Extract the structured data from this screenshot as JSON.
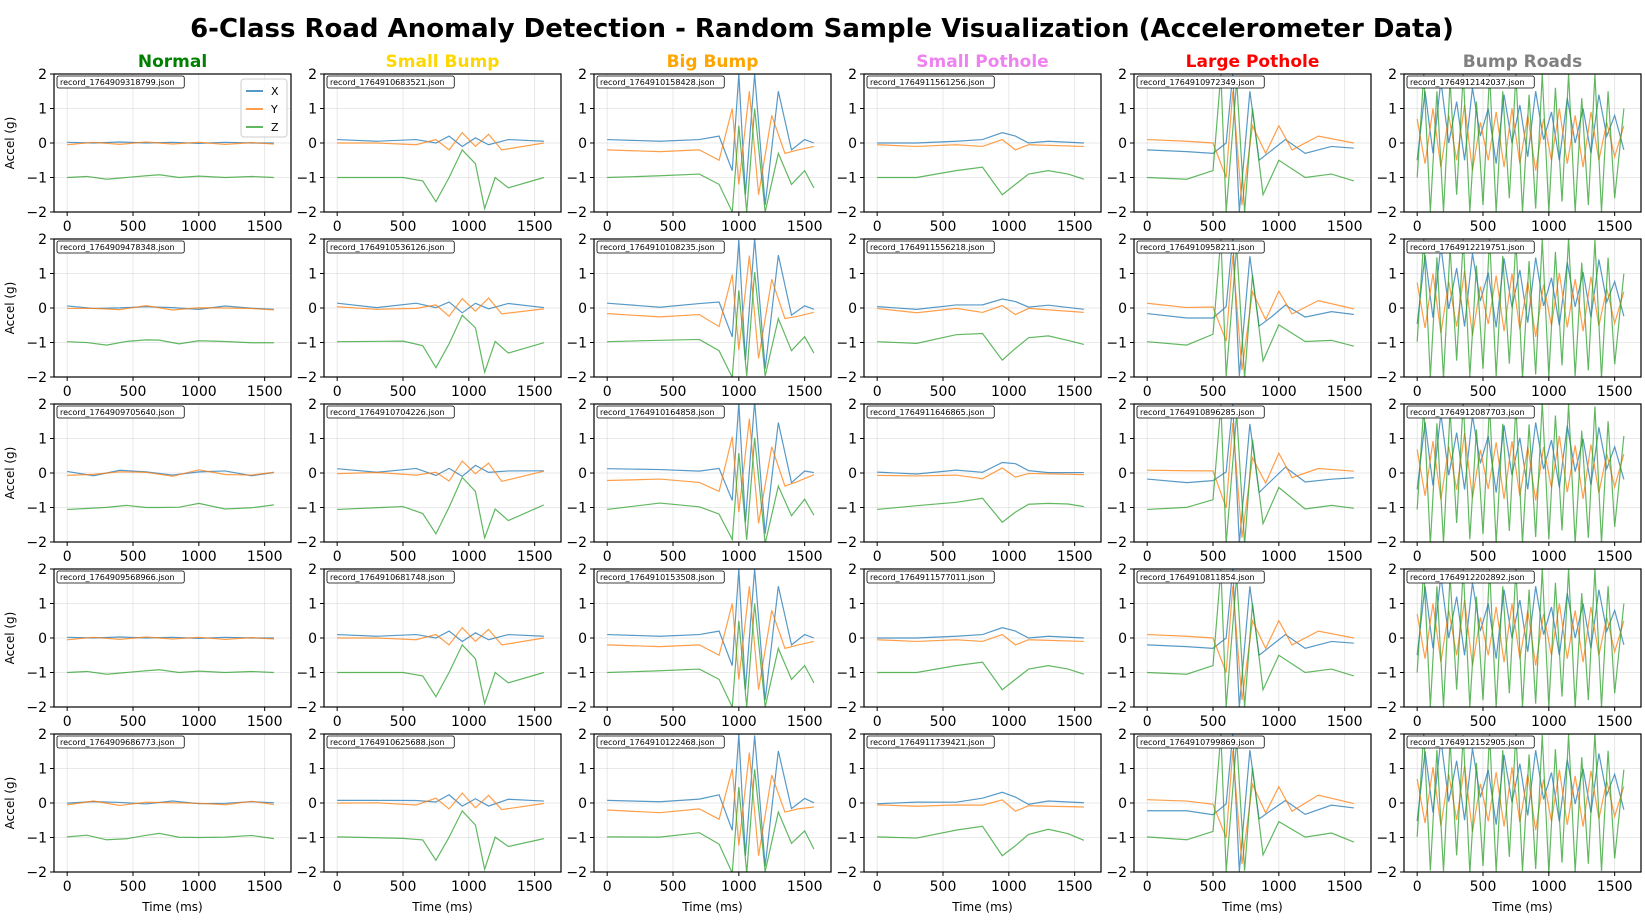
{
  "title": "6-Class Road Anomaly Detection - Random Sample Visualization (Accelerometer Data)",
  "chart_data": {
    "type": "line",
    "xlim": [
      -100,
      1700
    ],
    "ylim": [
      -2,
      2
    ],
    "xticks": [
      0,
      500,
      1000,
      1500
    ],
    "yticks": [
      2,
      1,
      0,
      -1,
      -2
    ],
    "xlabel": "Time (ms)",
    "ylabel": "Accel (g)",
    "legend": [
      "X",
      "Y",
      "Z"
    ],
    "series_colors": [
      "#1f77b4",
      "#ff7f0e",
      "#2ca02c"
    ],
    "columns": [
      {
        "title": "Normal",
        "color": "#008000",
        "anomaly": "normal",
        "files": [
          "record_1764909318799.json",
          "record_1764909478348.json",
          "record_1764909705640.json",
          "record_1764909568966.json",
          "record_1764909686773.json"
        ]
      },
      {
        "title": "Small Bump",
        "color": "#FFD700",
        "anomaly": "small_bump",
        "files": [
          "record_1764910683521.json",
          "record_1764910536126.json",
          "record_1764910704226.json",
          "record_1764910681748.json",
          "record_1764910625688.json"
        ]
      },
      {
        "title": "Big Bump",
        "color": "#FFA500",
        "anomaly": "big_bump",
        "files": [
          "record_1764910158428.json",
          "record_1764910108235.json",
          "record_1764910164858.json",
          "record_1764910153508.json",
          "record_1764910122468.json"
        ]
      },
      {
        "title": "Small Pothole",
        "color": "#EE82EE",
        "anomaly": "small_pothole",
        "files": [
          "record_1764911561256.json",
          "record_1764911556218.json",
          "record_1764911646865.json",
          "record_1764911577011.json",
          "record_1764911739421.json"
        ]
      },
      {
        "title": "Large Pothole",
        "color": "#FF0000",
        "anomaly": "large_pothole",
        "files": [
          "record_1764910972349.json",
          "record_1764910958211.json",
          "record_1764910896285.json",
          "record_1764910811854.json",
          "record_1764910799869.json"
        ]
      },
      {
        "title": "Bump Roads",
        "color": "#808080",
        "anomaly": "bump_roads",
        "files": [
          "record_1764912142037.json",
          "record_1764912219751.json",
          "record_1764912087703.json",
          "record_1764912202892.json",
          "record_1764912152905.json"
        ]
      }
    ],
    "samples": {
      "normal": {
        "x": [
          [
            0,
            0.02
          ],
          [
            200,
            0.0
          ],
          [
            400,
            0.03
          ],
          [
            600,
            0.0
          ],
          [
            800,
            0.02
          ],
          [
            1000,
            -0.01
          ],
          [
            1200,
            0.02
          ],
          [
            1400,
            0.0
          ],
          [
            1570,
            0.0
          ]
        ],
        "y": [
          [
            0,
            -0.05
          ],
          [
            200,
            0.02
          ],
          [
            400,
            -0.04
          ],
          [
            600,
            0.03
          ],
          [
            800,
            -0.03
          ],
          [
            1000,
            0.02
          ],
          [
            1200,
            -0.04
          ],
          [
            1400,
            0.01
          ],
          [
            1570,
            -0.03
          ]
        ],
        "z": [
          [
            0,
            -1.0
          ],
          [
            150,
            -0.97
          ],
          [
            300,
            -1.05
          ],
          [
            450,
            -1.0
          ],
          [
            600,
            -0.95
          ],
          [
            700,
            -0.92
          ],
          [
            850,
            -1.0
          ],
          [
            1000,
            -0.96
          ],
          [
            1200,
            -1.0
          ],
          [
            1400,
            -0.97
          ],
          [
            1570,
            -1.0
          ]
        ]
      },
      "small_bump": {
        "x": [
          [
            0,
            0.1
          ],
          [
            300,
            0.05
          ],
          [
            600,
            0.1
          ],
          [
            750,
            0.0
          ],
          [
            850,
            0.2
          ],
          [
            950,
            -0.1
          ],
          [
            1050,
            0.15
          ],
          [
            1150,
            -0.05
          ],
          [
            1300,
            0.1
          ],
          [
            1570,
            0.05
          ]
        ],
        "y": [
          [
            0,
            0.0
          ],
          [
            300,
            0.0
          ],
          [
            600,
            -0.05
          ],
          [
            750,
            0.1
          ],
          [
            850,
            -0.2
          ],
          [
            950,
            0.3
          ],
          [
            1050,
            -0.1
          ],
          [
            1150,
            0.25
          ],
          [
            1250,
            -0.2
          ],
          [
            1570,
            0.0
          ]
        ],
        "z": [
          [
            0,
            -1.0
          ],
          [
            500,
            -1.0
          ],
          [
            650,
            -1.1
          ],
          [
            750,
            -1.7
          ],
          [
            850,
            -1.0
          ],
          [
            950,
            -0.2
          ],
          [
            1050,
            -0.6
          ],
          [
            1120,
            -1.9
          ],
          [
            1200,
            -1.0
          ],
          [
            1300,
            -1.3
          ],
          [
            1570,
            -1.0
          ]
        ]
      },
      "big_bump": {
        "x": [
          [
            0,
            0.1
          ],
          [
            400,
            0.05
          ],
          [
            700,
            0.1
          ],
          [
            850,
            0.2
          ],
          [
            950,
            -0.8
          ],
          [
            1000,
            2.0
          ],
          [
            1050,
            -1.5
          ],
          [
            1120,
            2.0
          ],
          [
            1200,
            -1.8
          ],
          [
            1300,
            1.5
          ],
          [
            1400,
            -0.2
          ],
          [
            1500,
            0.1
          ],
          [
            1570,
            0.0
          ]
        ],
        "y": [
          [
            0,
            -0.2
          ],
          [
            400,
            -0.25
          ],
          [
            700,
            -0.2
          ],
          [
            850,
            -0.5
          ],
          [
            950,
            1.0
          ],
          [
            1000,
            -1.2
          ],
          [
            1080,
            1.5
          ],
          [
            1150,
            -1.5
          ],
          [
            1250,
            0.8
          ],
          [
            1350,
            -0.3
          ],
          [
            1450,
            -0.2
          ],
          [
            1570,
            -0.1
          ]
        ],
        "z": [
          [
            0,
            -1.0
          ],
          [
            400,
            -0.95
          ],
          [
            700,
            -0.9
          ],
          [
            850,
            -1.2
          ],
          [
            950,
            -2.0
          ],
          [
            1000,
            0.5
          ],
          [
            1060,
            -2.0
          ],
          [
            1120,
            1.0
          ],
          [
            1200,
            -2.0
          ],
          [
            1300,
            -0.3
          ],
          [
            1400,
            -1.2
          ],
          [
            1500,
            -0.8
          ],
          [
            1570,
            -1.3
          ]
        ]
      },
      "small_pothole": {
        "x": [
          [
            0,
            0.0
          ],
          [
            300,
            0.0
          ],
          [
            600,
            0.05
          ],
          [
            800,
            0.1
          ],
          [
            950,
            0.3
          ],
          [
            1050,
            0.2
          ],
          [
            1150,
            0.0
          ],
          [
            1300,
            0.05
          ],
          [
            1570,
            0.0
          ]
        ],
        "y": [
          [
            0,
            -0.05
          ],
          [
            300,
            -0.1
          ],
          [
            600,
            -0.05
          ],
          [
            800,
            -0.1
          ],
          [
            950,
            0.1
          ],
          [
            1050,
            -0.2
          ],
          [
            1150,
            -0.05
          ],
          [
            1570,
            -0.1
          ]
        ],
        "z": [
          [
            0,
            -1.0
          ],
          [
            300,
            -1.0
          ],
          [
            600,
            -0.8
          ],
          [
            800,
            -0.7
          ],
          [
            950,
            -1.5
          ],
          [
            1050,
            -1.2
          ],
          [
            1150,
            -0.9
          ],
          [
            1300,
            -0.8
          ],
          [
            1450,
            -0.9
          ],
          [
            1570,
            -1.05
          ]
        ]
      },
      "large_pothole": {
        "x": [
          [
            0,
            -0.2
          ],
          [
            300,
            -0.25
          ],
          [
            500,
            -0.3
          ],
          [
            600,
            0.0
          ],
          [
            650,
            2.0
          ],
          [
            700,
            -2.0
          ],
          [
            780,
            1.5
          ],
          [
            850,
            -0.5
          ],
          [
            950,
            -0.2
          ],
          [
            1050,
            0.1
          ],
          [
            1200,
            -0.3
          ],
          [
            1400,
            -0.1
          ],
          [
            1570,
            -0.15
          ]
        ],
        "y": [
          [
            0,
            0.1
          ],
          [
            300,
            0.05
          ],
          [
            500,
            0.0
          ],
          [
            600,
            -1.0
          ],
          [
            650,
            1.5
          ],
          [
            720,
            -1.8
          ],
          [
            800,
            0.5
          ],
          [
            900,
            -0.3
          ],
          [
            1000,
            0.5
          ],
          [
            1100,
            -0.2
          ],
          [
            1300,
            0.2
          ],
          [
            1570,
            0.0
          ]
        ],
        "z": [
          [
            0,
            -1.0
          ],
          [
            300,
            -1.05
          ],
          [
            500,
            -0.8
          ],
          [
            560,
            2.0
          ],
          [
            600,
            -2.0
          ],
          [
            680,
            1.8
          ],
          [
            740,
            -2.0
          ],
          [
            800,
            1.0
          ],
          [
            880,
            -1.5
          ],
          [
            1000,
            -0.5
          ],
          [
            1200,
            -1.0
          ],
          [
            1400,
            -0.9
          ],
          [
            1570,
            -1.1
          ]
        ]
      },
      "bump_roads": {
        "x": [
          [
            0,
            -0.5
          ],
          [
            60,
            1.5
          ],
          [
            120,
            -0.3
          ],
          [
            180,
            1.8
          ],
          [
            240,
            0.0
          ],
          [
            300,
            1.2
          ],
          [
            360,
            -0.5
          ],
          [
            420,
            1.6
          ],
          [
            480,
            0.2
          ],
          [
            540,
            1.0
          ],
          [
            600,
            -0.6
          ],
          [
            660,
            1.4
          ],
          [
            720,
            0.0
          ],
          [
            780,
            1.1
          ],
          [
            840,
            -0.4
          ],
          [
            900,
            1.5
          ],
          [
            960,
            0.1
          ],
          [
            1020,
            0.9
          ],
          [
            1080,
            -0.5
          ],
          [
            1140,
            1.3
          ],
          [
            1200,
            0.0
          ],
          [
            1260,
            1.0
          ],
          [
            1320,
            -0.3
          ],
          [
            1380,
            1.4
          ],
          [
            1440,
            0.2
          ],
          [
            1500,
            0.8
          ],
          [
            1570,
            -0.2
          ]
        ],
        "y": [
          [
            0,
            0.7
          ],
          [
            60,
            -0.6
          ],
          [
            120,
            1.0
          ],
          [
            180,
            -0.7
          ],
          [
            240,
            0.8
          ],
          [
            300,
            -0.5
          ],
          [
            360,
            1.1
          ],
          [
            420,
            -0.8
          ],
          [
            480,
            0.6
          ],
          [
            540,
            -0.5
          ],
          [
            600,
            0.9
          ],
          [
            660,
            -0.7
          ],
          [
            720,
            1.0
          ],
          [
            780,
            -0.6
          ],
          [
            840,
            0.8
          ],
          [
            900,
            -0.8
          ],
          [
            960,
            0.7
          ],
          [
            1020,
            -0.5
          ],
          [
            1080,
            1.0
          ],
          [
            1140,
            -0.6
          ],
          [
            1200,
            0.8
          ],
          [
            1260,
            -0.7
          ],
          [
            1320,
            0.9
          ],
          [
            1380,
            -0.5
          ],
          [
            1440,
            0.6
          ],
          [
            1500,
            -0.4
          ],
          [
            1570,
            0.5
          ]
        ],
        "z": [
          [
            0,
            -1.0
          ],
          [
            50,
            2.0
          ],
          [
            100,
            -2.0
          ],
          [
            150,
            1.5
          ],
          [
            200,
            -2.0
          ],
          [
            250,
            1.8
          ],
          [
            300,
            -1.5
          ],
          [
            350,
            2.0
          ],
          [
            400,
            -2.0
          ],
          [
            450,
            1.2
          ],
          [
            500,
            -1.8
          ],
          [
            550,
            2.0
          ],
          [
            600,
            -2.0
          ],
          [
            650,
            1.5
          ],
          [
            700,
            -1.6
          ],
          [
            750,
            2.0
          ],
          [
            800,
            -2.0
          ],
          [
            850,
            1.4
          ],
          [
            900,
            -1.9
          ],
          [
            950,
            2.0
          ],
          [
            1000,
            -2.0
          ],
          [
            1050,
            1.6
          ],
          [
            1100,
            -1.7
          ],
          [
            1150,
            2.0
          ],
          [
            1200,
            -2.0
          ],
          [
            1250,
            1.3
          ],
          [
            1300,
            -1.8
          ],
          [
            1350,
            2.0
          ],
          [
            1400,
            -2.0
          ],
          [
            1450,
            1.5
          ],
          [
            1500,
            -1.6
          ],
          [
            1570,
            1.0
          ]
        ]
      }
    }
  }
}
